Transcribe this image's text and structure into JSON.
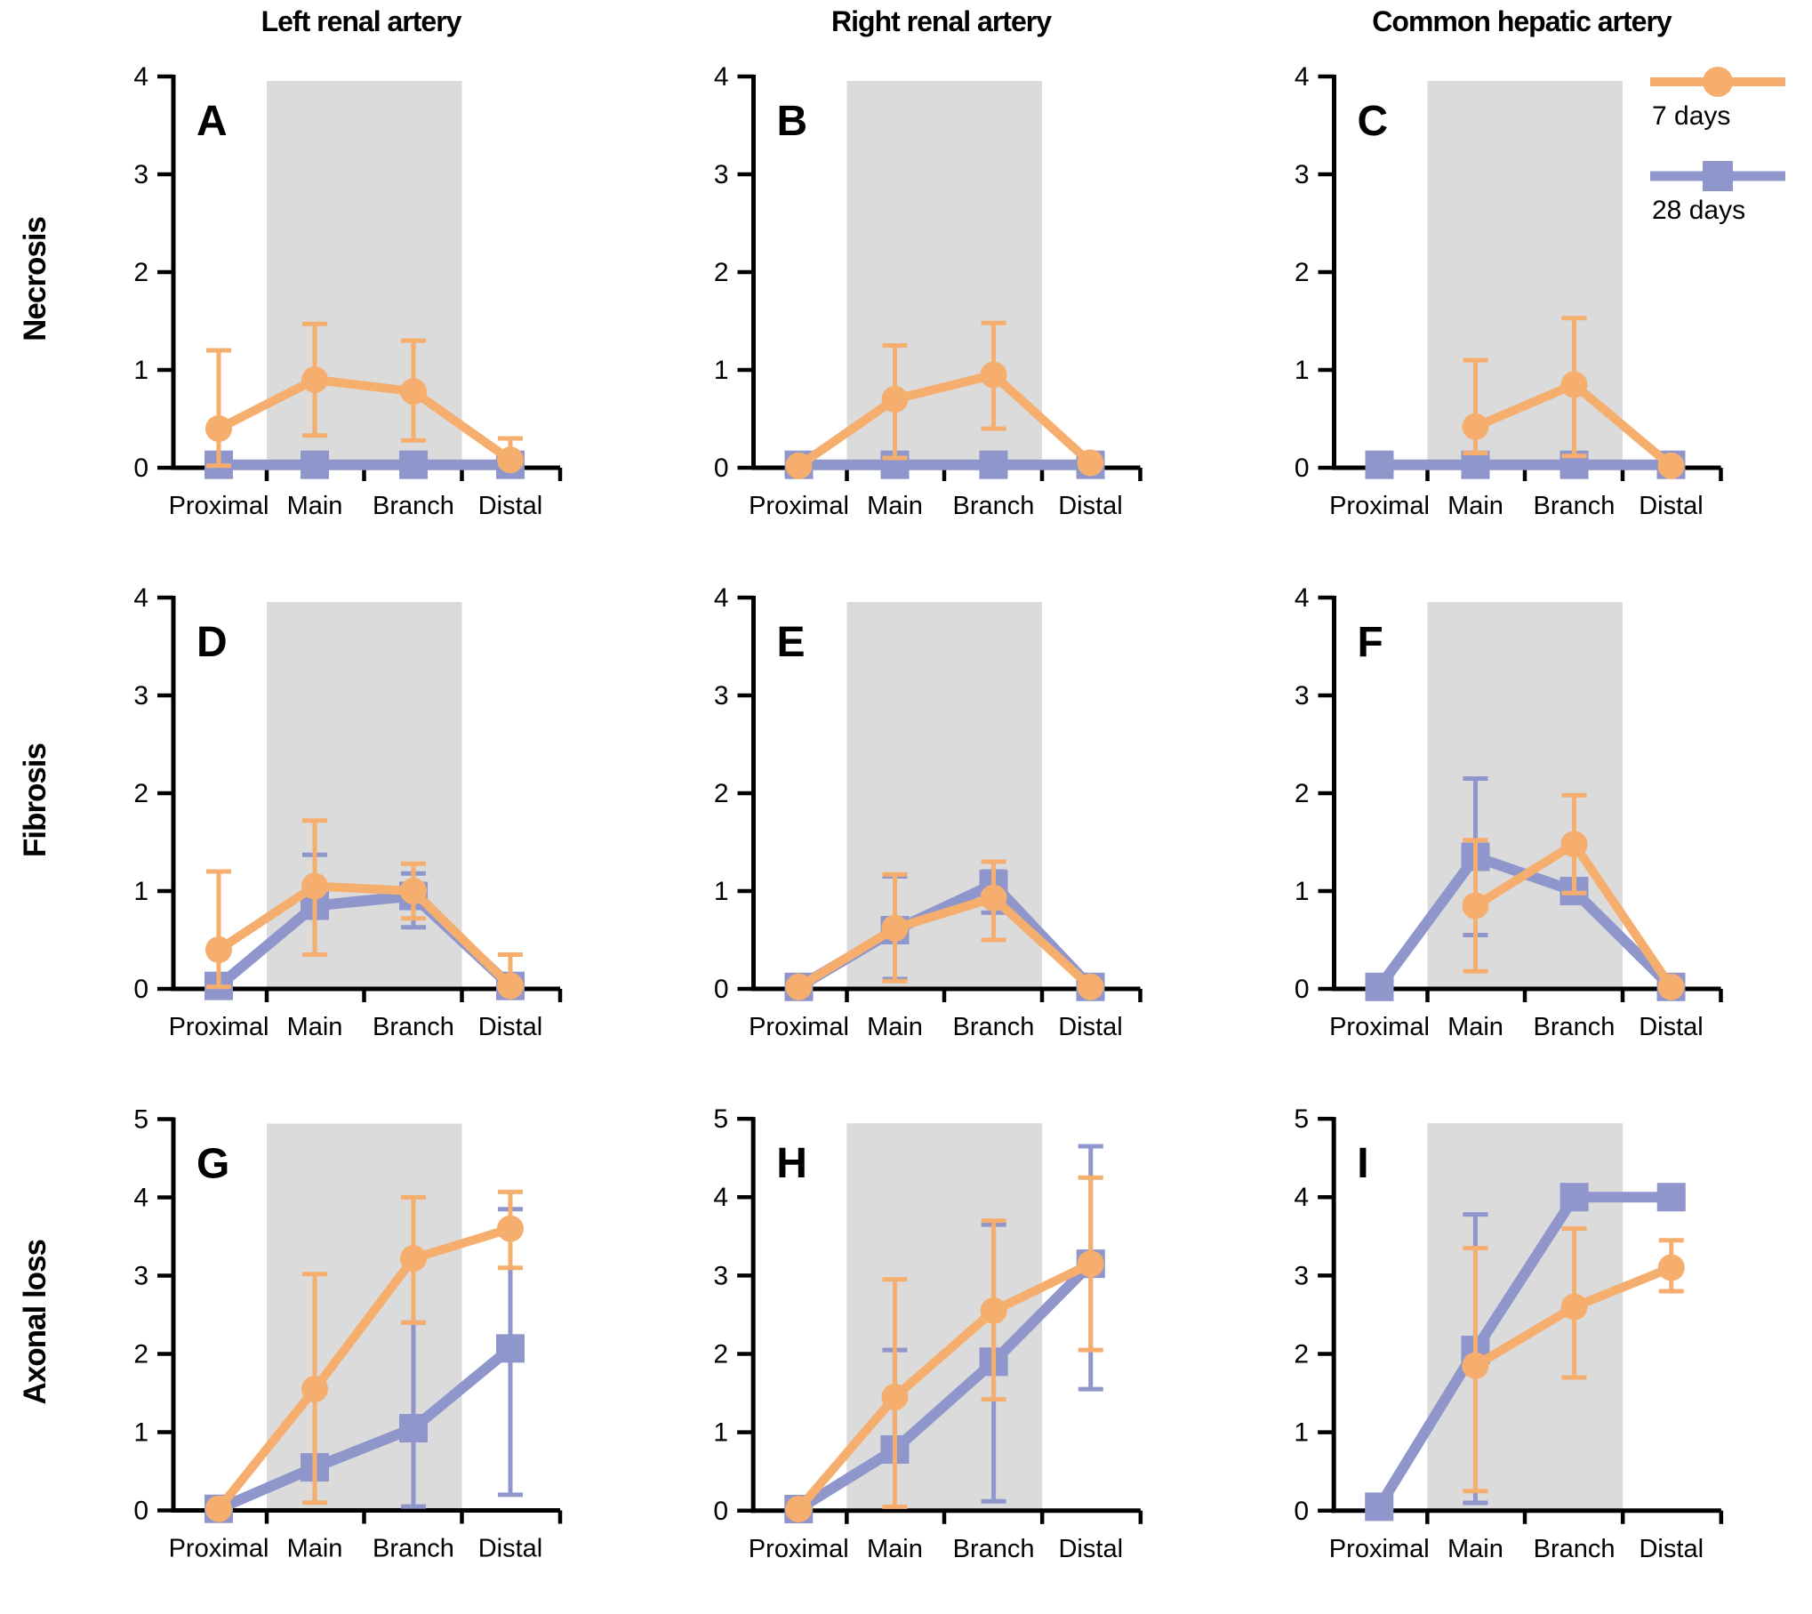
{
  "figure_title": "",
  "columns": [
    "Left renal artery",
    "Right renal artery",
    "Common hepatic artery"
  ],
  "rows": [
    "Necrosis",
    "Fibrosis",
    "Axonal loss"
  ],
  "legend": {
    "items": [
      {
        "label": "7 days",
        "marker": "circle",
        "color": "#F6AE6E"
      },
      {
        "label": "28 days",
        "marker": "square",
        "color": "#8E96CB"
      }
    ]
  },
  "colors": {
    "series_7d": "#F6AE6E",
    "series_28d": "#8E96CB",
    "band": "#DBDBDB",
    "axis": "#000000",
    "text": "#000000",
    "background": "#FFFFFF"
  },
  "chart_data": {
    "type": "line",
    "categories": [
      "Proximal",
      "Main",
      "Branch",
      "Distal"
    ],
    "x_band_highlight": [
      0.5,
      2.5
    ],
    "band_note": "gray band spans Main and Branch segments",
    "error_bars": "asymmetric, drawn in series color",
    "panels": [
      {
        "letter": "A",
        "row": "Necrosis",
        "column": "Left renal artery",
        "ylim": [
          0,
          4
        ],
        "yticks": [
          0,
          1,
          2,
          3,
          4
        ],
        "series": [
          {
            "name": "7 days",
            "marker": "circle",
            "values": [
              0.4,
              0.9,
              0.78,
              0.08
            ],
            "err_lo": [
              0.02,
              0.33,
              0.28,
              null
            ],
            "err_hi": [
              1.2,
              1.47,
              1.3,
              0.3
            ]
          },
          {
            "name": "28 days",
            "marker": "square",
            "values": [
              0.03,
              0.03,
              0.03,
              0.03
            ],
            "err_lo": [
              null,
              null,
              null,
              null
            ],
            "err_hi": [
              null,
              null,
              null,
              null
            ]
          }
        ]
      },
      {
        "letter": "B",
        "row": "Necrosis",
        "column": "Right renal artery",
        "ylim": [
          0,
          4
        ],
        "yticks": [
          0,
          1,
          2,
          3,
          4
        ],
        "series": [
          {
            "name": "7 days",
            "marker": "circle",
            "values": [
              0.02,
              0.7,
              0.95,
              0.05
            ],
            "err_lo": [
              null,
              0.1,
              0.4,
              null
            ],
            "err_hi": [
              null,
              1.25,
              1.48,
              null
            ]
          },
          {
            "name": "28 days",
            "marker": "square",
            "values": [
              0.03,
              0.03,
              0.03,
              0.03
            ],
            "err_lo": [
              null,
              null,
              null,
              null
            ],
            "err_hi": [
              null,
              null,
              null,
              null
            ]
          }
        ]
      },
      {
        "letter": "C",
        "row": "Necrosis",
        "column": "Common hepatic artery",
        "ylim": [
          0,
          4
        ],
        "yticks": [
          0,
          1,
          2,
          3,
          4
        ],
        "series": [
          {
            "name": "7 days",
            "marker": "circle",
            "values": [
              null,
              0.42,
              0.85,
              0.02
            ],
            "err_lo": [
              null,
              0.15,
              0.12,
              null
            ],
            "err_hi": [
              null,
              1.1,
              1.53,
              null
            ]
          },
          {
            "name": "28 days",
            "marker": "square",
            "values": [
              0.03,
              0.03,
              0.03,
              0.03
            ],
            "err_lo": [
              null,
              null,
              null,
              null
            ],
            "err_hi": [
              null,
              null,
              null,
              null
            ]
          }
        ]
      },
      {
        "letter": "D",
        "row": "Fibrosis",
        "column": "Left renal artery",
        "ylim": [
          0,
          4
        ],
        "yticks": [
          0,
          1,
          2,
          3,
          4
        ],
        "series": [
          {
            "name": "7 days",
            "marker": "circle",
            "values": [
              0.4,
              1.05,
              1.0,
              0.03
            ],
            "err_lo": [
              0.02,
              0.35,
              0.72,
              null
            ],
            "err_hi": [
              1.2,
              1.72,
              1.28,
              0.35
            ]
          },
          {
            "name": "28 days",
            "marker": "square",
            "values": [
              0.03,
              0.85,
              0.95,
              0.03
            ],
            "err_lo": [
              null,
              null,
              0.63,
              null
            ],
            "err_hi": [
              null,
              1.37,
              1.18,
              null
            ]
          }
        ]
      },
      {
        "letter": "E",
        "row": "Fibrosis",
        "column": "Right renal artery",
        "ylim": [
          0,
          4
        ],
        "yticks": [
          0,
          1,
          2,
          3,
          4
        ],
        "series": [
          {
            "name": "7 days",
            "marker": "circle",
            "values": [
              0.02,
              0.62,
              0.93,
              0.02
            ],
            "err_lo": [
              null,
              0.08,
              0.5,
              null
            ],
            "err_hi": [
              null,
              1.17,
              1.3,
              null
            ]
          },
          {
            "name": "28 days",
            "marker": "square",
            "values": [
              0.02,
              0.6,
              1.07,
              0.02
            ],
            "err_lo": [
              null,
              0.1,
              0.78,
              null
            ],
            "err_hi": [
              null,
              1.15,
              1.2,
              null
            ]
          }
        ]
      },
      {
        "letter": "F",
        "row": "Fibrosis",
        "column": "Common hepatic artery",
        "ylim": [
          0,
          4
        ],
        "yticks": [
          0,
          1,
          2,
          3,
          4
        ],
        "series": [
          {
            "name": "7 days",
            "marker": "circle",
            "values": [
              null,
              0.85,
              1.48,
              0.02
            ],
            "err_lo": [
              null,
              0.18,
              0.98,
              null
            ],
            "err_hi": [
              null,
              1.52,
              1.98,
              null
            ]
          },
          {
            "name": "28 days",
            "marker": "square",
            "values": [
              0.02,
              1.35,
              1.0,
              0.02
            ],
            "err_lo": [
              null,
              0.55,
              null,
              null
            ],
            "err_hi": [
              null,
              2.15,
              null,
              null
            ]
          }
        ]
      },
      {
        "letter": "G",
        "row": "Axonal loss",
        "column": "Left renal artery",
        "ylim": [
          0,
          5
        ],
        "yticks": [
          0,
          1,
          2,
          3,
          4,
          5
        ],
        "series": [
          {
            "name": "7 days",
            "marker": "circle",
            "values": [
              0.02,
              1.55,
              3.22,
              3.6
            ],
            "err_lo": [
              null,
              0.1,
              2.4,
              3.1
            ],
            "err_hi": [
              null,
              3.02,
              4.0,
              4.07
            ]
          },
          {
            "name": "28 days",
            "marker": "square",
            "values": [
              0.02,
              0.55,
              1.05,
              2.07
            ],
            "err_lo": [
              null,
              null,
              0.05,
              0.2
            ],
            "err_hi": [
              null,
              null,
              2.4,
              3.85
            ]
          }
        ]
      },
      {
        "letter": "H",
        "row": "Axonal loss",
        "column": "Right renal artery",
        "ylim": [
          0,
          5
        ],
        "yticks": [
          0,
          1,
          2,
          3,
          4,
          5
        ],
        "series": [
          {
            "name": "7 days",
            "marker": "circle",
            "values": [
              0.02,
              1.45,
              2.55,
              3.15
            ],
            "err_lo": [
              null,
              0.05,
              1.42,
              2.05
            ],
            "err_hi": [
              null,
              2.95,
              3.7,
              4.25
            ]
          },
          {
            "name": "28 days",
            "marker": "square",
            "values": [
              0.02,
              0.78,
              1.9,
              3.15
            ],
            "err_lo": [
              null,
              null,
              0.12,
              1.55
            ],
            "err_hi": [
              null,
              2.05,
              3.65,
              4.65
            ]
          }
        ]
      },
      {
        "letter": "I",
        "row": "Axonal loss",
        "column": "Common hepatic artery",
        "ylim": [
          0,
          5
        ],
        "yticks": [
          0,
          1,
          2,
          3,
          4,
          5
        ],
        "series": [
          {
            "name": "7 days",
            "marker": "circle",
            "values": [
              null,
              1.85,
              2.6,
              3.1
            ],
            "err_lo": [
              null,
              0.25,
              1.7,
              2.8
            ],
            "err_hi": [
              null,
              3.35,
              3.6,
              3.45
            ]
          },
          {
            "name": "28 days",
            "marker": "square",
            "values": [
              0.05,
              2.05,
              4.0,
              4.0
            ],
            "err_lo": [
              null,
              0.1,
              null,
              null
            ],
            "err_hi": [
              null,
              3.78,
              null,
              null
            ]
          }
        ]
      }
    ]
  }
}
